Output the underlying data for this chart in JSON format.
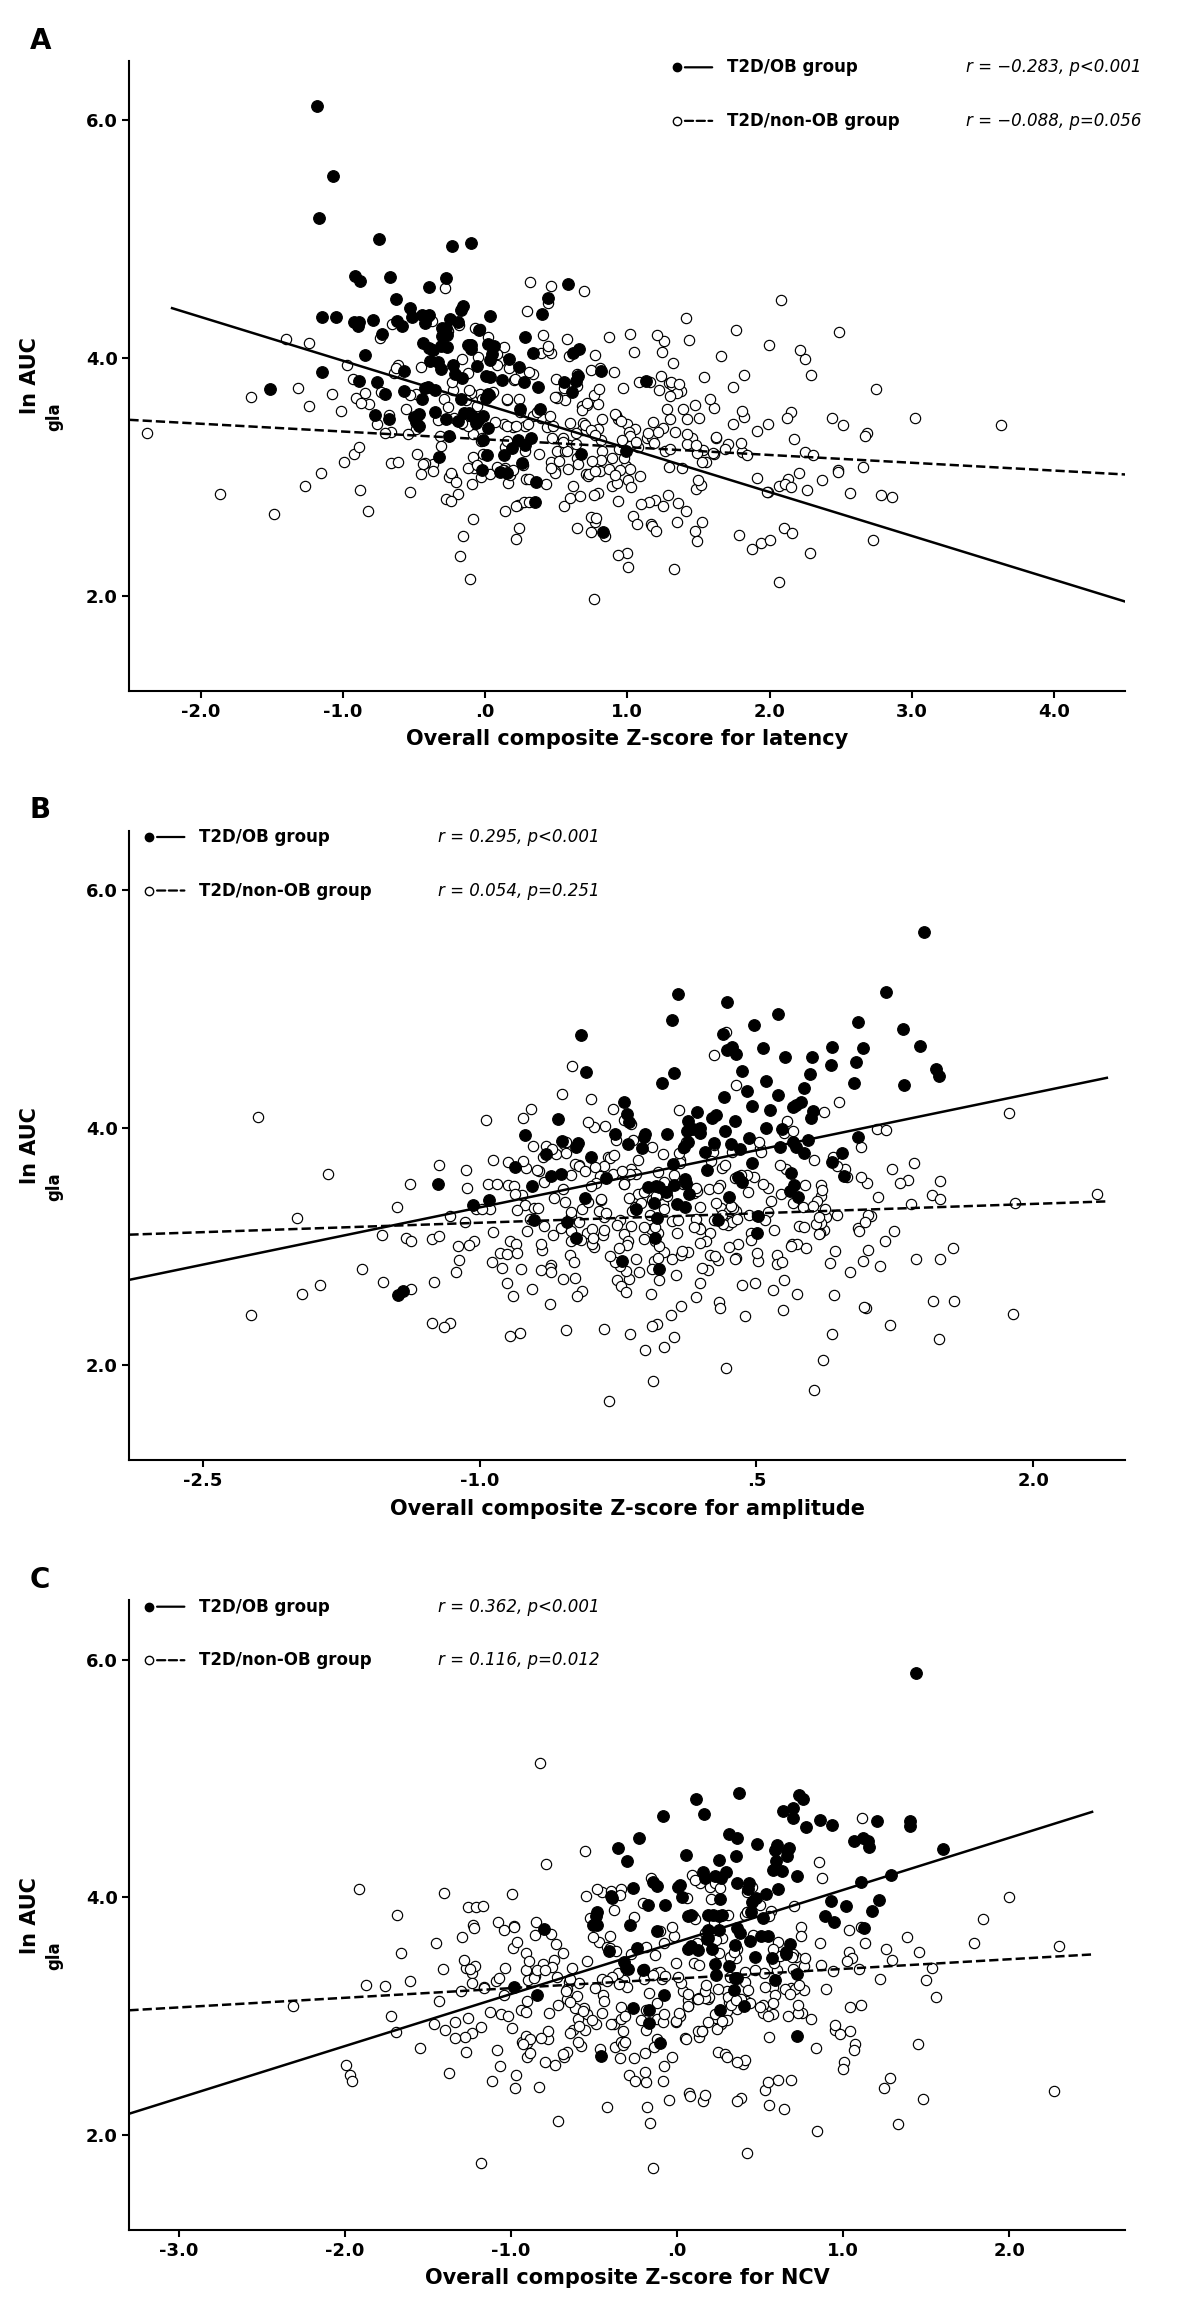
{
  "panels": [
    {
      "label": "A",
      "xlabel": "Overall composite Z-score for latency",
      "ylabel": "ln AUC",
      "ylabel_sub": "gla",
      "xlim": [
        -2.5,
        4.5
      ],
      "ylim": [
        1.2,
        6.5
      ],
      "xticks": [
        -2.0,
        -1.0,
        0.0,
        1.0,
        2.0,
        3.0,
        4.0
      ],
      "xticklabels": [
        "-2.0",
        "-1.0",
        ".0",
        "1.0",
        "2.0",
        "3.0",
        "4.0"
      ],
      "yticks": [
        2.0,
        4.0,
        6.0
      ],
      "yticklabels": [
        "2.0",
        "4.0",
        "6.0"
      ],
      "ob_stat": "r = −0.283, p<0.001",
      "nonob_stat": "r = −0.088, p=0.056",
      "ob_line_x": [
        -2.2,
        4.5
      ],
      "ob_line_y": [
        4.42,
        1.95
      ],
      "nonob_line_x": [
        -2.5,
        4.5
      ],
      "nonob_line_y": [
        3.48,
        3.02
      ],
      "legend_loc": "upper right",
      "ob_xmean": -0.15,
      "ob_ymean": 3.88,
      "ob_slope": -0.38,
      "nonob_xmean": 0.7,
      "nonob_ymean": 3.3,
      "nonob_slope": -0.065,
      "ob_n": 130,
      "nonob_n": 390,
      "ob_xstd": 0.52,
      "nonob_xstd": 0.95,
      "ob_ystd": 0.48,
      "nonob_ystd": 0.5
    },
    {
      "label": "B",
      "xlabel": "Overall composite Z-score for amplitude",
      "ylabel": "ln AUC",
      "ylabel_sub": "gla",
      "xlim": [
        -2.9,
        2.5
      ],
      "ylim": [
        1.2,
        6.5
      ],
      "xticks": [
        -2.5,
        -1.0,
        0.5,
        2.0
      ],
      "xticklabels": [
        "-2.5",
        "-1.0",
        ".5",
        "2.0"
      ],
      "yticks": [
        2.0,
        4.0,
        6.0
      ],
      "yticklabels": [
        "2.0",
        "4.0",
        "6.0"
      ],
      "ob_stat": "r = 0.295, p<0.001",
      "nonob_stat": "r = 0.054, p=0.251",
      "ob_line_x": [
        -2.9,
        2.4
      ],
      "ob_line_y": [
        2.72,
        4.42
      ],
      "nonob_line_x": [
        -2.9,
        2.4
      ],
      "nonob_line_y": [
        3.1,
        3.38
      ],
      "legend_loc": "upper left",
      "ob_xmean": 0.15,
      "ob_ymean": 3.92,
      "ob_slope": 0.42,
      "nonob_xmean": -0.05,
      "nonob_ymean": 3.22,
      "nonob_slope": 0.05,
      "ob_n": 130,
      "nonob_n": 390,
      "ob_xstd": 0.55,
      "nonob_xstd": 0.75,
      "ob_ystd": 0.48,
      "nonob_ystd": 0.5
    },
    {
      "label": "C",
      "xlabel": "Overall composite Z-score for NCV",
      "ylabel": "ln AUC",
      "ylabel_sub": "gla",
      "xlim": [
        -3.3,
        2.7
      ],
      "ylim": [
        1.2,
        6.5
      ],
      "xticks": [
        -3.0,
        -2.0,
        -1.0,
        0.0,
        1.0,
        2.0
      ],
      "xticklabels": [
        "-3.0",
        "-2.0",
        "-1.0",
        ".0",
        "1.0",
        "2.0"
      ],
      "yticks": [
        2.0,
        4.0,
        6.0
      ],
      "yticklabels": [
        "2.0",
        "4.0",
        "6.0"
      ],
      "ob_stat": "r = 0.362, p<0.001",
      "nonob_stat": "r = 0.116, p=0.012",
      "ob_line_x": [
        -3.3,
        2.5
      ],
      "ob_line_y": [
        2.18,
        4.72
      ],
      "nonob_line_x": [
        -3.3,
        2.5
      ],
      "nonob_line_y": [
        3.05,
        3.52
      ],
      "legend_loc": "upper left",
      "ob_xmean": 0.35,
      "ob_ymean": 3.92,
      "ob_slope": 0.44,
      "nonob_xmean": -0.15,
      "nonob_ymean": 3.22,
      "nonob_slope": 0.08,
      "ob_n": 130,
      "nonob_n": 390,
      "ob_xstd": 0.52,
      "nonob_xstd": 0.82,
      "ob_ystd": 0.48,
      "nonob_ystd": 0.5
    }
  ],
  "fig_width": 11.82,
  "fig_height": 23.16,
  "dpi": 100,
  "background_color": "#ffffff",
  "point_size_ob": 70,
  "point_size_nonob": 55,
  "line_width": 1.8,
  "font_size_xlabel": 15,
  "font_size_ylabel": 15,
  "font_size_tick": 13,
  "font_size_legend": 12,
  "font_size_panel_label": 20
}
